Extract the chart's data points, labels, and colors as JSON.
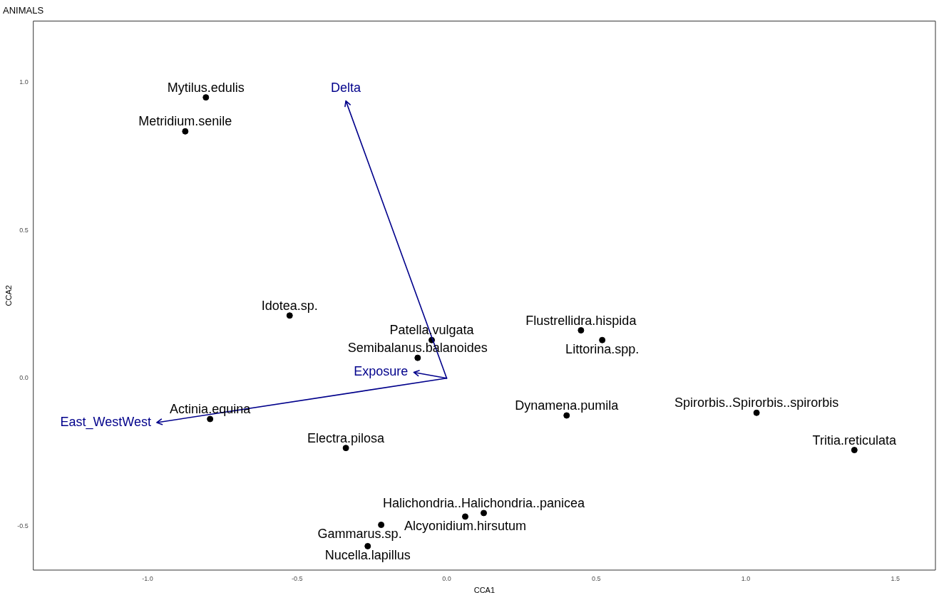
{
  "chart_data": {
    "type": "scatter",
    "title": "ANIMALS",
    "xlabel": "CCA1",
    "ylabel": "CCA2",
    "xlim": [
      -1.382,
      1.634
    ],
    "ylim": [
      -0.649,
      1.208
    ],
    "xticks": [
      {
        "value": -1,
        "label": "-1.0"
      },
      {
        "value": -0.5,
        "label": "-0.5"
      },
      {
        "value": 0,
        "label": "0.0"
      },
      {
        "value": 0.5,
        "label": "0.5"
      },
      {
        "value": 1,
        "label": "1.0"
      },
      {
        "value": 1.5,
        "label": "1.5"
      }
    ],
    "yticks": [
      {
        "value": -0.5,
        "label": "-0.5"
      },
      {
        "value": 0,
        "label": "0.0"
      },
      {
        "value": 0.5,
        "label": "0.5"
      },
      {
        "value": 1,
        "label": "1.0"
      }
    ],
    "grid": false,
    "legend": false,
    "series": [
      {
        "type": "scatter",
        "marker": "circle",
        "color": "#000000",
        "x": [
          -0.805,
          -0.874,
          -0.525,
          -0.05,
          -0.097,
          0.449,
          0.52,
          -0.791,
          0.401,
          1.036,
          1.363,
          -0.337,
          0.124,
          0.062,
          -0.219,
          -0.264
        ],
        "values": [
          0.95,
          0.835,
          0.212,
          0.129,
          0.069,
          0.162,
          0.129,
          -0.138,
          -0.126,
          -0.117,
          -0.243,
          -0.236,
          -0.456,
          -0.468,
          -0.496,
          -0.568
        ]
      },
      {
        "type": "line",
        "name": "Delta",
        "color": "#00008b",
        "x": [
          0,
          -0.337
        ],
        "values": [
          0,
          0.938
        ]
      },
      {
        "type": "line",
        "name": "East_WestWest",
        "color": "#00008b",
        "x": [
          0,
          -0.969
        ],
        "values": [
          0,
          -0.15
        ]
      },
      {
        "type": "line",
        "name": "Exposure",
        "color": "#00008b",
        "x": [
          0,
          -0.11
        ],
        "values": [
          0,
          0.02
        ]
      }
    ],
    "annotations": [
      {
        "text": "Mytilus.edulis",
        "x": -0.805,
        "y": 0.95
      },
      {
        "text": "Metridium.senile",
        "x": -0.874,
        "y": 0.835
      },
      {
        "text": "Idotea.sp.",
        "x": -0.525,
        "y": 0.212
      },
      {
        "text": "Patella.vulgata",
        "x": -0.05,
        "y": 0.129
      },
      {
        "text": "Semibalanus.balanoides",
        "x": -0.097,
        "y": 0.069
      },
      {
        "text": "Flustrellidra.hispida",
        "x": 0.449,
        "y": 0.162
      },
      {
        "text": "Littorina.spp.",
        "x": 0.52,
        "y": 0.129
      },
      {
        "text": "Actinia.equina",
        "x": -0.791,
        "y": -0.138
      },
      {
        "text": "Dynamena.pumila",
        "x": 0.401,
        "y": -0.126
      },
      {
        "text": "Spirorbis..Spirorbis..spirorbis",
        "x": 1.036,
        "y": -0.117
      },
      {
        "text": "Tritia.reticulata",
        "x": 1.363,
        "y": -0.243
      },
      {
        "text": "Electra.pilosa",
        "x": -0.337,
        "y": -0.236
      },
      {
        "text": "Halichondria..Halichondria..panicea",
        "x": 0.124,
        "y": -0.456
      },
      {
        "text": "Alcyonidium.hirsutum",
        "x": 0.062,
        "y": -0.468
      },
      {
        "text": "Gammarus.sp.",
        "x": -0.219,
        "y": -0.496
      },
      {
        "text": "Nucella.lapillus",
        "x": -0.264,
        "y": -0.568
      }
    ]
  }
}
